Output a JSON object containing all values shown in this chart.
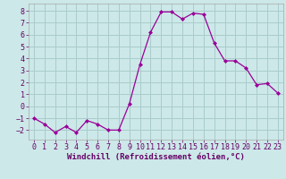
{
  "x": [
    0,
    1,
    2,
    3,
    4,
    5,
    6,
    7,
    8,
    9,
    10,
    11,
    12,
    13,
    14,
    15,
    16,
    17,
    18,
    19,
    20,
    21,
    22,
    23
  ],
  "y": [
    -1,
    -1.5,
    -2.2,
    -1.7,
    -2.2,
    -1.2,
    -1.5,
    -2.0,
    -2.0,
    0.2,
    3.5,
    6.2,
    7.9,
    7.9,
    7.3,
    7.8,
    7.7,
    5.3,
    3.8,
    3.8,
    3.2,
    1.8,
    1.9,
    1.1
  ],
  "line_color": "#990099",
  "marker": "D",
  "marker_size": 2.0,
  "bg_color": "#cce8e8",
  "grid_color": "#aacccc",
  "xlabel": "Windchill (Refroidissement éolien,°C)",
  "xlabel_fontsize": 6.5,
  "tick_fontsize": 6.0,
  "ylim": [
    -2.8,
    8.6
  ],
  "xlim": [
    -0.5,
    23.5
  ],
  "yticks": [
    -2,
    -1,
    0,
    1,
    2,
    3,
    4,
    5,
    6,
    7,
    8
  ],
  "xticks": [
    0,
    1,
    2,
    3,
    4,
    5,
    6,
    7,
    8,
    9,
    10,
    11,
    12,
    13,
    14,
    15,
    16,
    17,
    18,
    19,
    20,
    21,
    22,
    23
  ]
}
